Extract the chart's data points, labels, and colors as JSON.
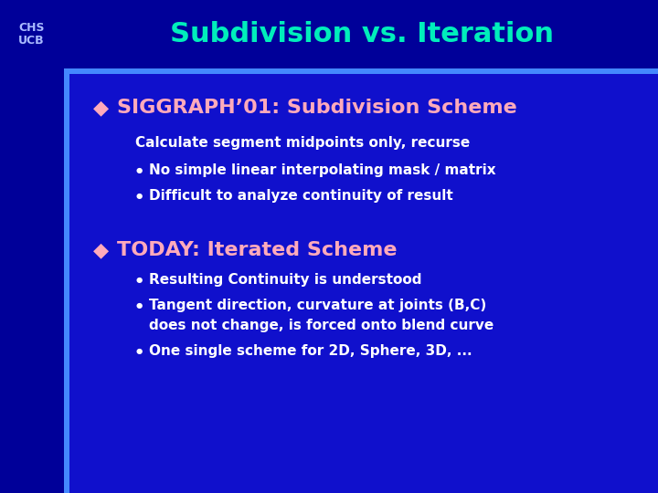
{
  "bg_color": "#1010CC",
  "header_bg": "#000099",
  "sidebar_bg": "#000099",
  "accent_bar_color": "#4488FF",
  "header_text": "Subdivision vs. Iteration",
  "header_color": "#00EEBB",
  "header_fontsize": 22,
  "chs_ucb_color": "#AABBFF",
  "chs_ucb_fontsize": 9,
  "section1_title": "SIGGRAPH’01: Subdivision Scheme",
  "section1_color": "#FFAABB",
  "section1_sub": "Calculate segment midpoints only, recurse",
  "section1_sub_color": "#FFFFFF",
  "section1_bullets": [
    "No simple linear interpolating mask / matrix",
    "Difficult to analyze continuity of result"
  ],
  "section2_title": "TODAY: Iterated Scheme",
  "section2_color": "#FFAABB",
  "section2_bullets": [
    "Resulting Continuity is understood",
    "Tangent direction, curvature at joints (B,C)\ndoes not change, is forced onto blend curve",
    "One single scheme for 2D, Sphere, 3D, ..."
  ],
  "body_text_color": "#FFFFFF",
  "diamond_color": "#FFAABB",
  "bullet_color": "#FFFFFF",
  "body_fontsize": 11,
  "title_fontsize": 16,
  "sub_fontsize": 11
}
